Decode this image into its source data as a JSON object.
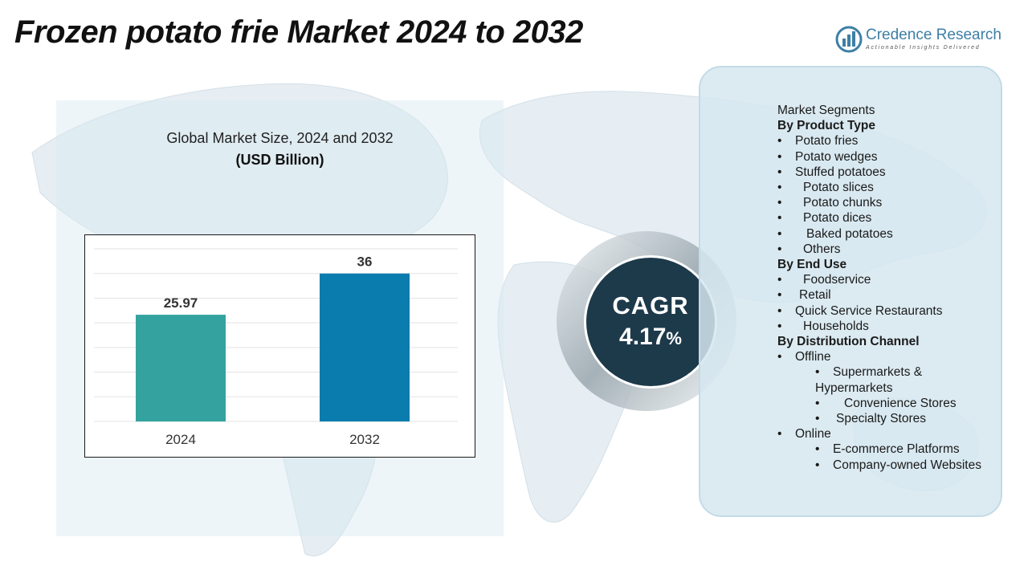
{
  "title": "Frozen potato frie Market 2024 to 2032",
  "logo": {
    "name": "Credence Research",
    "tagline": "Actionable Insights Delivered",
    "color": "#3d7fa6"
  },
  "chart_data": {
    "type": "bar",
    "title": "Global Market Size, 2024 and 2032",
    "unit": "(USD Billion)",
    "categories": [
      "2024",
      "2032"
    ],
    "values": [
      25.97,
      36
    ],
    "value_labels": [
      "25.97",
      "36"
    ],
    "colors": [
      "#34a39f",
      "#0b7cae"
    ],
    "ylim": [
      0,
      42
    ],
    "grid": true,
    "xlabel": "",
    "ylabel": ""
  },
  "cagr": {
    "label": "CAGR",
    "value": "4.17",
    "suffix": "%"
  },
  "segments": {
    "header": "Market Segments",
    "groups": [
      {
        "heading": "By Product Type",
        "items": [
          {
            "text": "Potato fries"
          },
          {
            "text": "Potato wedges"
          },
          {
            "text": "Stuffed potatoes"
          },
          {
            "text": "Potato slices"
          },
          {
            "text": "Potato chunks"
          },
          {
            "text": "Potato dices"
          },
          {
            "text": "Baked potatoes"
          },
          {
            "text": "Others"
          }
        ]
      },
      {
        "heading": "By End Use",
        "items": [
          {
            "text": "Foodservice"
          },
          {
            "text": "Retail"
          },
          {
            "text": "Quick Service Restaurants"
          },
          {
            "text": "Households"
          }
        ]
      },
      {
        "heading": "By Distribution Channel",
        "items": [
          {
            "text": "Offline",
            "children": [
              "Supermarkets & Hypermarkets",
              "Convenience Stores",
              "Specialty Stores"
            ]
          },
          {
            "text": "Online",
            "children": [
              "E-commerce Platforms",
              "Company-owned Websites"
            ]
          }
        ]
      }
    ]
  }
}
